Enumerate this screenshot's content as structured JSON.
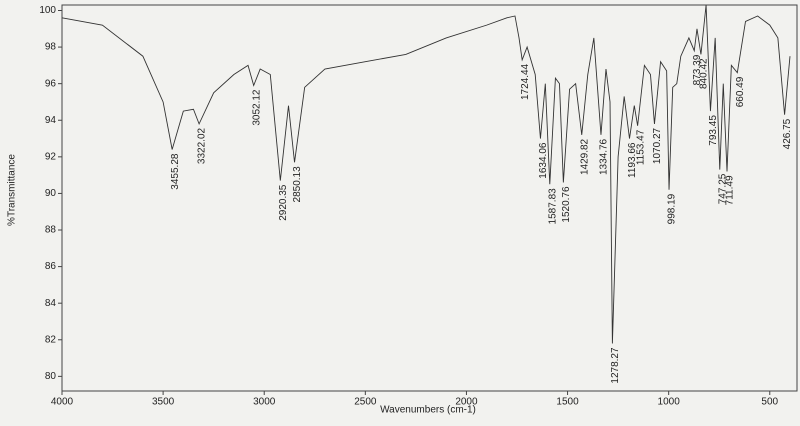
{
  "chart_data": {
    "type": "line",
    "xlabel": "Wavenumbers (cm-1)",
    "ylabel": "%Transmittance",
    "x": [
      4000,
      3800,
      3600,
      3500,
      3455.28,
      3400,
      3350,
      3322.02,
      3250,
      3150,
      3080,
      3052.12,
      3020,
      2970,
      2920.35,
      2880,
      2850.13,
      2800,
      2700,
      2500,
      2300,
      2100,
      1900,
      1800,
      1760,
      1740,
      1724.44,
      1700,
      1660,
      1634.06,
      1610,
      1587.83,
      1560,
      1540,
      1520.76,
      1490,
      1460,
      1429.82,
      1400,
      1370,
      1334.76,
      1310,
      1290,
      1278.27,
      1250,
      1220,
      1193.66,
      1170,
      1153.47,
      1120,
      1090,
      1070.27,
      1040,
      1010,
      998.19,
      980,
      960,
      940,
      900,
      873.39,
      860,
      840.42,
      815,
      793.45,
      770,
      747.25,
      730,
      711.49,
      690,
      660.49,
      620,
      560,
      500,
      460,
      426.75,
      400
    ],
    "series": [
      {
        "color": "#333333",
        "values": [
          99.6,
          99.2,
          97.5,
          95,
          92.4,
          94.5,
          94.6,
          93.8,
          95.5,
          96.5,
          97,
          95.9,
          96.8,
          96.5,
          90.7,
          94.8,
          91.7,
          95.8,
          96.8,
          97.2,
          97.6,
          98.5,
          99.2,
          99.6,
          99.7,
          98.5,
          97.3,
          98,
          96.5,
          93,
          96,
          90.5,
          96.3,
          96,
          90.6,
          95.7,
          96,
          93.2,
          96.5,
          98.5,
          93.2,
          96.8,
          95,
          81.8,
          92,
          95.3,
          93,
          94.8,
          93.7,
          97,
          96.5,
          93.8,
          97.2,
          96.7,
          90.2,
          95.8,
          96,
          97.5,
          98.5,
          97.8,
          99,
          97.6,
          100.3,
          94.5,
          98.5,
          91.3,
          96,
          91.2,
          97,
          96.6,
          99.4,
          99.7,
          99.2,
          98.5,
          94.3,
          97.5
        ]
      }
    ],
    "peaks": [
      3455.28,
      3322.02,
      3052.12,
      2920.35,
      2850.13,
      1724.44,
      1634.06,
      1587.83,
      1520.76,
      1429.82,
      1334.76,
      1278.27,
      1193.66,
      1153.47,
      1070.27,
      998.19,
      873.39,
      840.42,
      793.45,
      747.25,
      711.49,
      660.49,
      426.75
    ],
    "xlim": [
      4000,
      400
    ],
    "xticks": [
      4000,
      3500,
      3000,
      2500,
      2000,
      1500,
      1000,
      500
    ],
    "ylim": [
      79.2,
      100.3
    ],
    "yticks": [
      80,
      82,
      84,
      86,
      88,
      90,
      92,
      94,
      96,
      98,
      100
    ],
    "grid": false
  }
}
